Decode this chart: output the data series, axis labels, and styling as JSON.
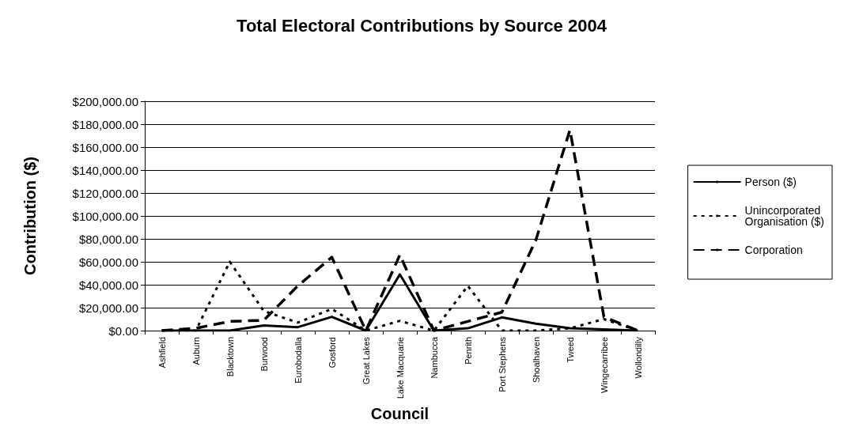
{
  "chart_data": {
    "type": "line",
    "title": "Total Electoral Contributions by Source 2004",
    "xlabel": "Council",
    "ylabel": "Contribution ($)",
    "categories": [
      "Ashfield",
      "Auburn",
      "Blacktown",
      "Burwood",
      "Eurobodalla",
      "Gosford",
      "Great Lakes",
      "Lake Macquarie",
      "Nambucca",
      "Penrith",
      "Port Stephens",
      "Shoalhaven",
      "Tweed",
      "Wingecarribee",
      "Wollondilly"
    ],
    "series": [
      {
        "name": "Person ($)",
        "color": "#000000",
        "line_style": "solid",
        "values": [
          0,
          0,
          0,
          4500,
          3000,
          12000,
          0,
          49000,
          0,
          2000,
          11500,
          6000,
          2000,
          1000,
          0
        ]
      },
      {
        "name": "Unincorporated Organisation ($)",
        "color": "#000000",
        "line_style": "dotted",
        "values": [
          0,
          0,
          60000,
          17000,
          7000,
          19000,
          0,
          8500,
          0,
          39000,
          0,
          0,
          2000,
          10000,
          0
        ]
      },
      {
        "name": "Corporation",
        "color": "#000000",
        "line_style": "dashed",
        "values": [
          0,
          2000,
          8000,
          9000,
          39000,
          64000,
          0,
          66000,
          0,
          8000,
          16000,
          79000,
          175000,
          12000,
          0
        ]
      }
    ],
    "ylim": [
      0,
      200000
    ],
    "yticks": [
      {
        "value": 0,
        "label": "$0.00"
      },
      {
        "value": 20000,
        "label": "$20,000.00"
      },
      {
        "value": 40000,
        "label": "$40,000.00"
      },
      {
        "value": 60000,
        "label": "$60,000.00"
      },
      {
        "value": 80000,
        "label": "$80,000.00"
      },
      {
        "value": 100000,
        "label": "$100,000.00"
      },
      {
        "value": 120000,
        "label": "$120,000.00"
      },
      {
        "value": 140000,
        "label": "$140,000.00"
      },
      {
        "value": 160000,
        "label": "$160,000.00"
      },
      {
        "value": 180000,
        "label": "$180,000.00"
      },
      {
        "value": 200000,
        "label": "$200,000.00"
      }
    ],
    "grid": "y",
    "legend": "right",
    "marker": "none"
  }
}
